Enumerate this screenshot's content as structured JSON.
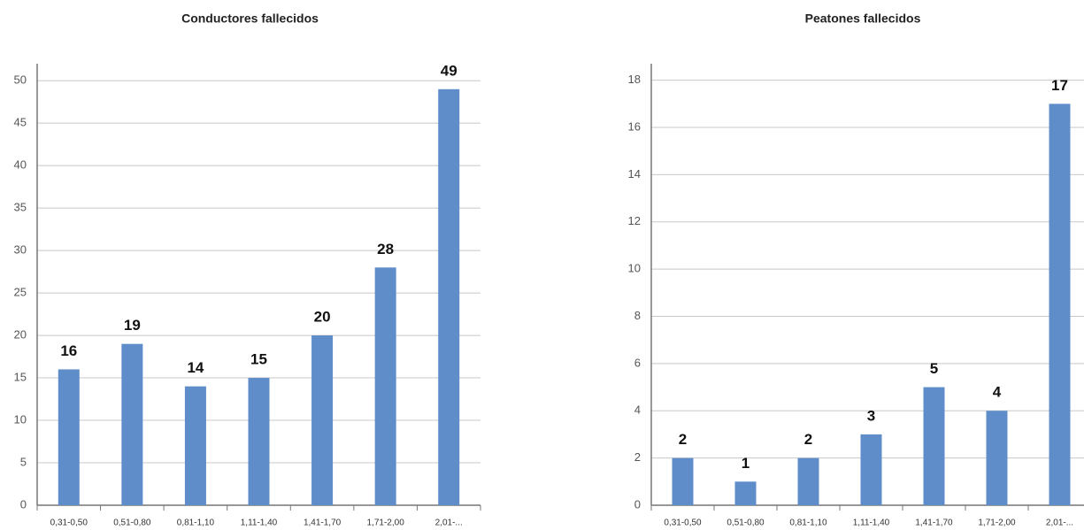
{
  "chart_data": [
    {
      "type": "bar",
      "title": "Conductores fallecidos",
      "categories": [
        "0,31-0,50",
        "0,51-0,80",
        "0,81-1,10",
        "1,11-1,40",
        "1,41-1,70",
        "1,71-2,00",
        "2,01-..."
      ],
      "values": [
        16,
        19,
        14,
        15,
        20,
        28,
        49
      ],
      "color": "#5f8dc9",
      "ylim": [
        0,
        52
      ],
      "yticks": [
        0,
        5,
        10,
        15,
        20,
        25,
        30,
        35,
        40,
        45,
        50
      ],
      "grid": true
    },
    {
      "type": "bar",
      "title": "Peatones fallecidos",
      "categories": [
        "0,31-0,50",
        "0,51-0,80",
        "0,81-1,10",
        "1,11-1,40",
        "1,41-1,70",
        "1,71-2,00",
        "2,01-..."
      ],
      "values": [
        2,
        1,
        2,
        3,
        5,
        4,
        17
      ],
      "color": "#5f8dc9",
      "ylim": [
        0,
        18.7
      ],
      "yticks": [
        0,
        2,
        4,
        6,
        8,
        10,
        12,
        14,
        16,
        18
      ],
      "grid": true
    }
  ]
}
